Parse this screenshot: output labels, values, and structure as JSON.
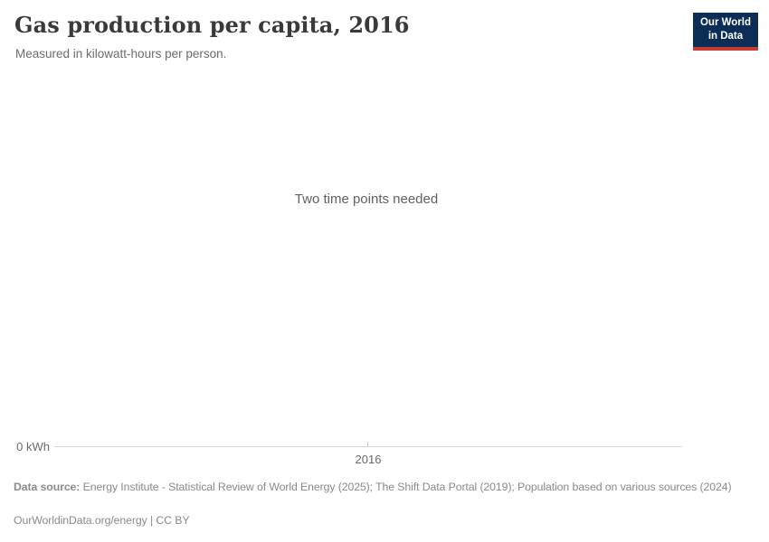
{
  "header": {
    "title": "Gas production per capita, 2016",
    "subtitle": "Measured in kilowatt-hours per person.",
    "logo": {
      "line1": "Our World",
      "line2": "in Data"
    }
  },
  "chart": {
    "no_data_message": "Two time points needed",
    "axis": {
      "y_zero_label": "0 kWh",
      "x_tick_label": "2016"
    }
  },
  "chart_data": {
    "type": "line",
    "title": "Gas production per capita, 2016",
    "subtitle": "Measured in kilowatt-hours per person.",
    "note": "Two time points needed (chart shows no series; placeholder message displayed instead of data)",
    "x_ticks": [
      "2016"
    ],
    "y_ticks": [
      "0 kWh"
    ],
    "series": [],
    "xlabel": "",
    "ylabel": "kilowatt-hours per person",
    "ylim": [
      0,
      null
    ],
    "grid": false,
    "legend": "none"
  },
  "footer": {
    "data_source_label": "Data source:",
    "data_source_text": "Energy Institute - Statistical Review of World Energy (2025); The Shift Data Portal (2019); Population based on various sources (2024)",
    "attribution": "OurWorldinData.org/energy | CC BY"
  },
  "colors": {
    "logo_navy": "#0c2d55",
    "logo_red": "#c43c33",
    "axis_line": "#dadada",
    "title_text": "#3a3a3a",
    "muted_text": "#6b6b6b",
    "footer_text": "#8a8a8a"
  }
}
